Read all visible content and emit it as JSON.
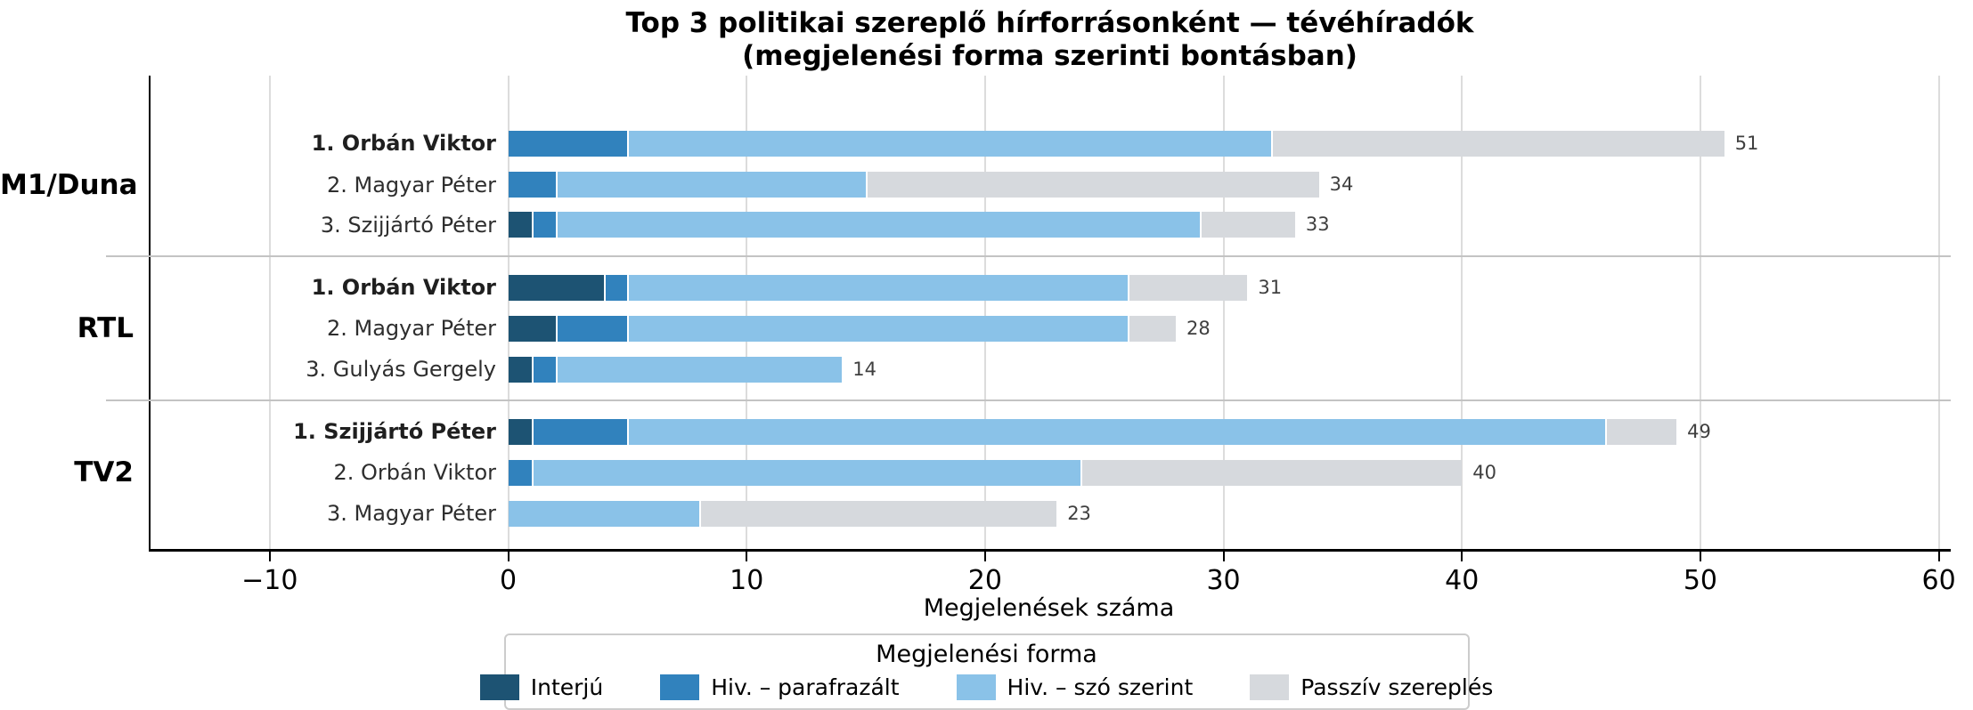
{
  "title": {
    "line1": "Top 3 politikai szereplő hírforrásonként — tévéhíradók",
    "line2": "(megjelenési forma szerinti bontásban)"
  },
  "chart_data": {
    "type": "bar",
    "orientation": "horizontal",
    "stacked": true,
    "title": "Top 3 politikai szereplő hírforrásonként — tévéhíradók (megjelenési forma szerinti bontásban)",
    "xlabel": "Megjelenések száma",
    "xlim": [
      -15,
      60.5
    ],
    "xticks": [
      -10,
      0,
      10,
      20,
      30,
      40,
      50,
      60
    ],
    "xtick_labels": [
      "−10",
      "0",
      "10",
      "20",
      "30",
      "40",
      "50",
      "60"
    ],
    "grid": true,
    "legend_title": "Megjelenési forma",
    "legend_position": "bottom-center",
    "series": [
      {
        "name": "Interjú",
        "color": "#1d5373"
      },
      {
        "name": "Hiv. – parafrazált",
        "color": "#3182bd"
      },
      {
        "name": "Hiv. – szó szerint",
        "color": "#8ac2e8"
      },
      {
        "name": "Passzív szereplés",
        "color": "#d6d9dd"
      }
    ],
    "groups": [
      {
        "source": "M1/Duna",
        "bars": [
          {
            "label": "1. Orbán Viktor",
            "rank": 1,
            "values": [
              0,
              5,
              27,
              19
            ],
            "total": 51
          },
          {
            "label": "2. Magyar Péter",
            "rank": 2,
            "values": [
              0,
              2,
              13,
              19
            ],
            "total": 34
          },
          {
            "label": "3. Szijjártó Péter",
            "rank": 3,
            "values": [
              1,
              1,
              27,
              4
            ],
            "total": 33
          }
        ]
      },
      {
        "source": "RTL",
        "bars": [
          {
            "label": "1. Orbán Viktor",
            "rank": 1,
            "values": [
              4,
              1,
              21,
              5
            ],
            "total": 31
          },
          {
            "label": "2. Magyar Péter",
            "rank": 2,
            "values": [
              2,
              3,
              21,
              2
            ],
            "total": 28
          },
          {
            "label": "3. Gulyás Gergely",
            "rank": 3,
            "values": [
              1,
              1,
              12,
              0
            ],
            "total": 14
          }
        ]
      },
      {
        "source": "TV2",
        "bars": [
          {
            "label": "1. Szijjártó Péter",
            "rank": 1,
            "values": [
              1,
              4,
              41,
              3
            ],
            "total": 49
          },
          {
            "label": "2. Orbán Viktor",
            "rank": 2,
            "values": [
              0,
              1,
              23,
              16
            ],
            "total": 40
          },
          {
            "label": "3. Magyar Péter",
            "rank": 3,
            "values": [
              0,
              0,
              8,
              15
            ],
            "total": 23
          }
        ]
      }
    ]
  }
}
